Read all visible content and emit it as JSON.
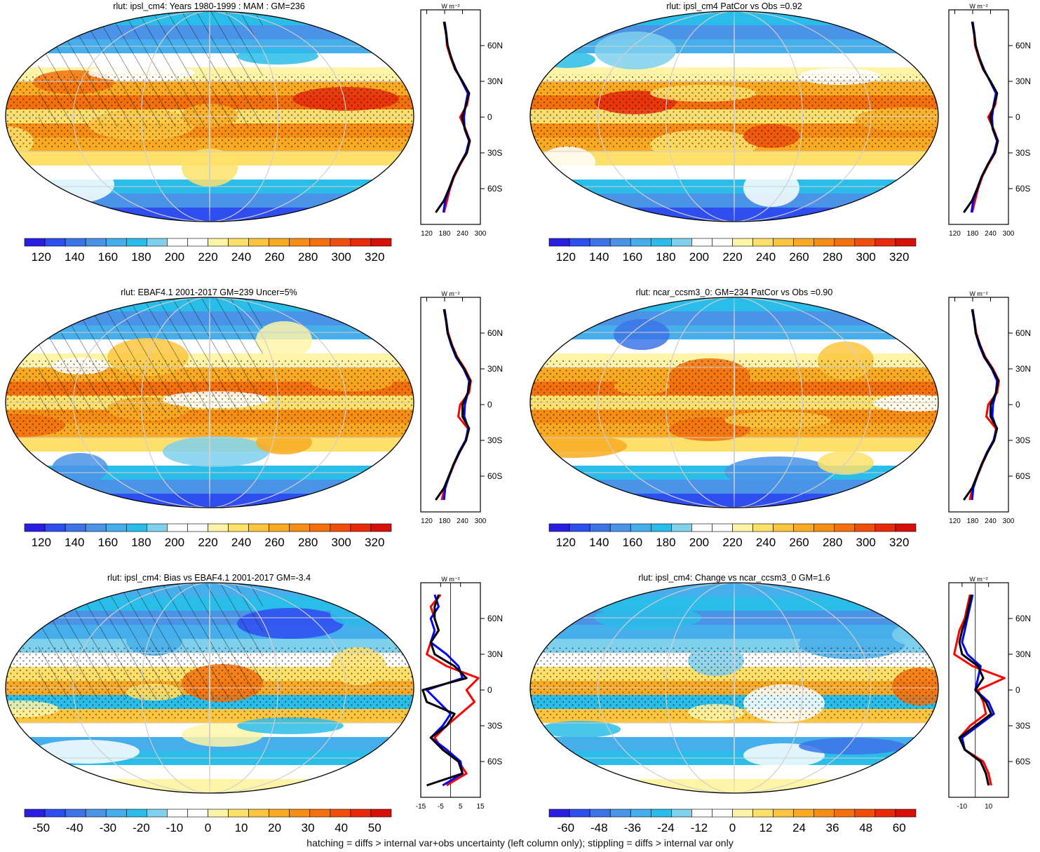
{
  "caption": "hatching = diffs > internal var+obs uncertainty (left column only); stippling = diffs > internal var only",
  "colors": {
    "model": "#ff0000",
    "obs": "#0000ff",
    "ref": "#000000",
    "abs_scale": [
      "#2a1fe0",
      "#2f4ef0",
      "#3c74e8",
      "#4a93e6",
      "#46aeea",
      "#2bbde9",
      "#7fd0ec",
      "#ffffff",
      "#ffffff",
      "#fef4a8",
      "#fde06a",
      "#fbc53f",
      "#f9aa22",
      "#f68d14",
      "#f3700c",
      "#ef4f0a",
      "#e82a0a",
      "#d61008"
    ],
    "diff_scale": [
      "#2a1fe0",
      "#2f4ef0",
      "#3c74e8",
      "#4a93e6",
      "#46aeea",
      "#2bbde9",
      "#7fd0ec",
      "#ffffff",
      "#ffffff",
      "#fef4a8",
      "#fde06a",
      "#fbc53f",
      "#f9aa22",
      "#f68d14",
      "#f3700c",
      "#ef4f0a",
      "#e82a0a",
      "#d61008"
    ]
  },
  "chart_data": [
    {
      "type": "heatmap",
      "title": "rlut: ipsl_cm4: Years 1980-1999 : MAM : GM=236",
      "colorbar_labels": [
        "120",
        "140",
        "160",
        "180",
        "200",
        "220",
        "240",
        "260",
        "280",
        "300",
        "320"
      ],
      "profile": {
        "type": "line",
        "unit": "W m⁻²",
        "lat_ticks": [
          "60N",
          "30N",
          "0",
          "30S",
          "60S"
        ],
        "x_ticks": [
          "120",
          "180",
          "240",
          "300"
        ],
        "xlim": [
          100,
          300
        ],
        "lat": [
          80,
          70,
          60,
          50,
          40,
          30,
          20,
          10,
          0,
          -10,
          -20,
          -30,
          -40,
          -50,
          -60,
          -70,
          -80
        ],
        "series": [
          {
            "values": [
              178,
              185,
              188,
              200,
              215,
              240,
              262,
              255,
              232,
              250,
              265,
              255,
              232,
              212,
              198,
              188,
              178
            ]
          },
          {
            "values": [
              180,
              186,
              190,
              202,
              218,
              238,
              258,
              250,
              245,
              247,
              262,
              252,
              230,
              210,
              196,
              182,
              176
            ]
          },
          {
            "values": [
              178,
              185,
              190,
              202,
              216,
              240,
              262,
              252,
              238,
              248,
              264,
              254,
              230,
              210,
              195,
              178,
              150
            ]
          }
        ]
      }
    },
    {
      "type": "heatmap",
      "title": "rlut: ipsl_cm4 PatCor vs Obs =0.92",
      "colorbar_labels": [
        "120",
        "140",
        "160",
        "180",
        "200",
        "220",
        "240",
        "260",
        "280",
        "300",
        "320"
      ],
      "profile": {
        "type": "line",
        "unit": "W m⁻²",
        "lat_ticks": [
          "60N",
          "30N",
          "0",
          "30S",
          "60S"
        ],
        "x_ticks": [
          "120",
          "180",
          "240",
          "300"
        ],
        "xlim": [
          100,
          300
        ],
        "lat": [
          80,
          70,
          60,
          50,
          40,
          30,
          20,
          10,
          0,
          -10,
          -20,
          -30,
          -40,
          -50,
          -60,
          -70,
          -80
        ],
        "series": [
          {
            "values": [
              178,
              185,
              188,
              200,
              215,
              240,
              262,
              255,
              232,
              250,
              265,
              255,
              232,
              212,
              198,
              188,
              178
            ]
          },
          {
            "values": [
              180,
              186,
              190,
              202,
              218,
              238,
              258,
              250,
              245,
              247,
              262,
              252,
              230,
              210,
              196,
              182,
              176
            ]
          },
          {
            "values": [
              178,
              185,
              190,
              202,
              216,
              240,
              262,
              252,
              238,
              248,
              264,
              254,
              230,
              210,
              195,
              178,
              150
            ]
          }
        ]
      }
    },
    {
      "type": "heatmap",
      "title": "rlut: EBAF4.1 2001-2017 GM=239 Uncer=5%",
      "colorbar_labels": [
        "120",
        "140",
        "160",
        "180",
        "200",
        "220",
        "240",
        "260",
        "280",
        "300",
        "320"
      ],
      "profile": {
        "type": "line",
        "unit": "W m⁻²",
        "lat_ticks": [
          "60N",
          "30N",
          "0",
          "30S",
          "60S"
        ],
        "x_ticks": [
          "120",
          "180",
          "240",
          "300"
        ],
        "xlim": [
          100,
          300
        ],
        "lat": [
          80,
          70,
          60,
          50,
          40,
          30,
          20,
          10,
          0,
          -10,
          -20,
          -30,
          -40,
          -50,
          -60,
          -70,
          -80
        ],
        "series": [
          {
            "values": [
              178,
              186,
              192,
              205,
              222,
              248,
              268,
              262,
              232,
              226,
              258,
              252,
              230,
              212,
              196,
              180,
              170
            ]
          },
          {
            "values": [
              180,
              186,
              190,
              202,
              218,
              244,
              262,
              258,
              248,
              246,
              260,
              250,
              228,
              210,
              195,
              182,
              178
            ]
          },
          {
            "values": [
              178,
              185,
              190,
              204,
              220,
              246,
              266,
              258,
              240,
              240,
              262,
              252,
              230,
              210,
              194,
              178,
              150
            ]
          }
        ]
      }
    },
    {
      "type": "heatmap",
      "title": "rlut: ncar_ccsm3_0: GM=234 PatCor vs Obs =0.90",
      "colorbar_labels": [
        "120",
        "140",
        "160",
        "180",
        "200",
        "220",
        "240",
        "260",
        "280",
        "300",
        "320"
      ],
      "profile": {
        "type": "line",
        "unit": "W m⁻²",
        "lat_ticks": [
          "60N",
          "30N",
          "0",
          "30S",
          "60S"
        ],
        "x_ticks": [
          "120",
          "180",
          "240",
          "300"
        ],
        "xlim": [
          100,
          300
        ],
        "lat": [
          80,
          70,
          60,
          50,
          40,
          30,
          20,
          10,
          0,
          -10,
          -20,
          -30,
          -40,
          -50,
          -60,
          -70,
          -80
        ],
        "series": [
          {
            "values": [
              178,
              186,
              192,
              205,
              222,
              248,
              268,
              262,
              232,
              226,
              258,
              252,
              230,
              212,
              196,
              180,
              170
            ]
          },
          {
            "values": [
              180,
              186,
              190,
              202,
              218,
              244,
              262,
              258,
              248,
              246,
              260,
              250,
              228,
              210,
              195,
              182,
              178
            ]
          },
          {
            "values": [
              178,
              185,
              190,
              204,
              220,
              246,
              266,
              258,
              240,
              240,
              262,
              252,
              230,
              210,
              194,
              178,
              150
            ]
          }
        ]
      }
    },
    {
      "type": "heatmap",
      "title": "rlut: ipsl_cm4: Bias vs EBAF4.1 2001-2017 GM=-3.4",
      "colorbar_labels": [
        "-50",
        "-40",
        "-30",
        "-20",
        "-10",
        "0",
        "10",
        "20",
        "30",
        "40",
        "50"
      ],
      "profile": {
        "type": "line",
        "unit": "W m⁻²",
        "lat_ticks": [
          "60N",
          "30N",
          "0",
          "30S",
          "60S"
        ],
        "x_ticks": [
          "-15",
          "-5",
          "5",
          "15"
        ],
        "xlim": [
          -15,
          15
        ],
        "lat": [
          80,
          70,
          60,
          50,
          40,
          30,
          20,
          10,
          0,
          -10,
          -20,
          -30,
          -40,
          -50,
          -60,
          -70,
          -80
        ],
        "series": [
          {
            "values": [
              -5,
              -10,
              -8,
              -6,
              -10,
              -12,
              -2,
              14,
              8,
              12,
              5,
              -2,
              -8,
              -4,
              4,
              8,
              -2
            ]
          },
          {
            "values": [
              -8,
              -6,
              -10,
              -8,
              -10,
              -2,
              4,
              6,
              -12,
              -6,
              0,
              -4,
              -10,
              -2,
              5,
              6,
              -4
            ]
          },
          {
            "values": [
              -6,
              -8,
              -8,
              -6,
              -10,
              -8,
              2,
              8,
              -14,
              -12,
              2,
              -2,
              -10,
              -4,
              4,
              6,
              -12
            ]
          }
        ]
      }
    },
    {
      "type": "heatmap",
      "title": "rlut: ipsl_cm4: Change vs ncar_ccsm3_0 GM=1.6",
      "colorbar_labels": [
        "-60",
        "-48",
        "-36",
        "-24",
        "-12",
        "0",
        "12",
        "24",
        "36",
        "48",
        "60"
      ],
      "profile": {
        "type": "line",
        "unit": "W m⁻²",
        "lat_ticks": [
          "60N",
          "30N",
          "0",
          "30S",
          "60S"
        ],
        "x_ticks": [
          "-10",
          "10"
        ],
        "xlim": [
          -20,
          25
        ],
        "lat": [
          80,
          70,
          60,
          50,
          40,
          30,
          20,
          10,
          0,
          -10,
          -20,
          -30,
          -40,
          -50,
          -60,
          -70,
          -80
        ],
        "series": [
          {
            "values": [
              -4,
              -6,
              -8,
              -12,
              -14,
              -16,
              -2,
              22,
              2,
              6,
              8,
              -4,
              -12,
              -8,
              6,
              10,
              12
            ]
          },
          {
            "values": [
              -2,
              -4,
              -6,
              -8,
              -10,
              -6,
              4,
              2,
              0,
              10,
              14,
              2,
              -10,
              -8,
              4,
              8,
              10
            ]
          },
          {
            "values": [
              -3,
              -5,
              -7,
              -10,
              -12,
              -10,
              2,
              6,
              0,
              8,
              12,
              0,
              -12,
              -8,
              4,
              8,
              10
            ]
          }
        ]
      }
    }
  ]
}
